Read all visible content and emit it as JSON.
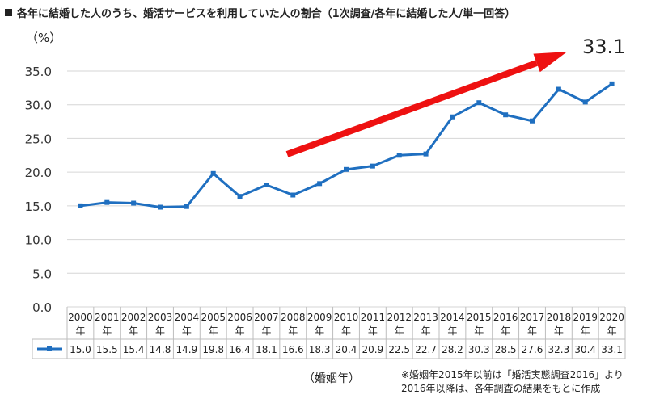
{
  "chart_data": {
    "type": "line",
    "title": "各年に結婚した人のうち、婚活サービスを利用していた人の割合（1次調査/各年に結婚した人/単一回答）",
    "ylabel": "（%）",
    "xlabel": "（婚姻年）",
    "ylim": [
      0,
      35
    ],
    "yticks": [
      "0.0",
      "5.0",
      "10.0",
      "15.0",
      "20.0",
      "25.0",
      "30.0",
      "35.0"
    ],
    "grid": true,
    "legend": "table-left",
    "categories": [
      "2000",
      "2001",
      "2002",
      "2003",
      "2004",
      "2005",
      "2006",
      "2007",
      "2008",
      "2009",
      "2010",
      "2011",
      "2012",
      "2013",
      "2014",
      "2015",
      "2016",
      "2017",
      "2018",
      "2019",
      "2020"
    ],
    "category_suffix": "年",
    "series": [
      {
        "values": [
          15.0,
          15.5,
          15.4,
          14.8,
          14.9,
          19.8,
          16.4,
          18.1,
          16.6,
          18.3,
          20.4,
          20.9,
          22.5,
          22.7,
          28.2,
          30.3,
          28.5,
          27.6,
          32.3,
          30.4,
          33.1
        ],
        "labels": [
          "15.0",
          "15.5",
          "15.4",
          "14.8",
          "14.9",
          "19.8",
          "16.4",
          "18.1",
          "16.6",
          "18.3",
          "20.4",
          "20.9",
          "22.5",
          "22.7",
          "28.2",
          "30.3",
          "28.5",
          "27.6",
          "32.3",
          "30.4",
          "33.1"
        ]
      }
    ],
    "annotation": "33.1",
    "note": [
      "※婚姻年2015年以前は「婚活実態調査2016」より",
      "2016年以降は、各年調査の結果をもとに作成"
    ],
    "colors": {
      "line": "#1f6fc0",
      "arrow": "#ee1111",
      "grid": "#d6d6d6"
    }
  }
}
